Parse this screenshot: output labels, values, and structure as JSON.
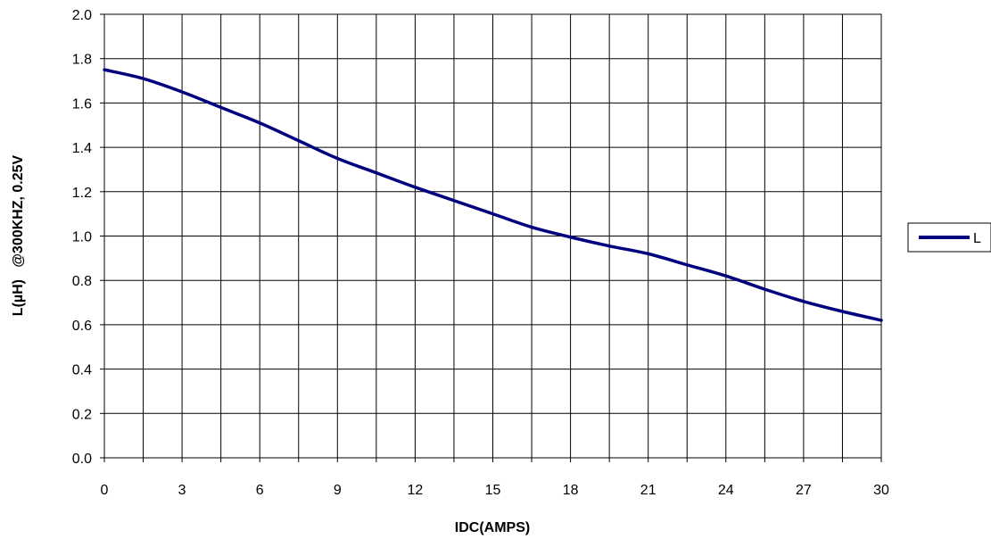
{
  "chart_data": {
    "type": "line",
    "title": "",
    "xlabel": "IDC(AMPS)",
    "ylabel": "L(µH)   @300KHZ, 0.25V",
    "xlim": [
      0,
      30
    ],
    "ylim": [
      0,
      2.0
    ],
    "x_ticks": [
      0,
      1.5,
      3,
      4.5,
      6,
      7.5,
      9,
      10.5,
      12,
      13.5,
      15,
      16.5,
      18,
      19.5,
      21,
      22.5,
      24,
      25.5,
      27,
      28.5,
      30
    ],
    "x_tick_labels": [
      "0",
      "3",
      "6",
      "9",
      "12",
      "15",
      "18",
      "21",
      "24",
      "27",
      "30"
    ],
    "x_tick_label_values": [
      0,
      3,
      6,
      9,
      12,
      15,
      18,
      21,
      24,
      27,
      30
    ],
    "y_ticks": [
      0,
      0.2,
      0.4,
      0.6,
      0.8,
      1.0,
      1.2,
      1.4,
      1.6,
      1.8,
      2.0
    ],
    "y_tick_labels": [
      "0.0",
      "0.2",
      "0.4",
      "0.6",
      "0.8",
      "1.0",
      "1.2",
      "1.4",
      "1.6",
      "1.8",
      "2.0"
    ],
    "grid": true,
    "legend_position": "right",
    "series": [
      {
        "name": "L",
        "color": "#00007f",
        "x": [
          0,
          1.5,
          3,
          4.5,
          6,
          7.5,
          9,
          10.5,
          12,
          13.5,
          15,
          16.5,
          18,
          19.5,
          21,
          22.5,
          24,
          25.5,
          27,
          28.5,
          30
        ],
        "y": [
          1.75,
          1.71,
          1.65,
          1.58,
          1.51,
          1.43,
          1.35,
          1.285,
          1.22,
          1.16,
          1.1,
          1.04,
          0.995,
          0.955,
          0.92,
          0.87,
          0.82,
          0.76,
          0.705,
          0.66,
          0.62
        ]
      }
    ]
  }
}
